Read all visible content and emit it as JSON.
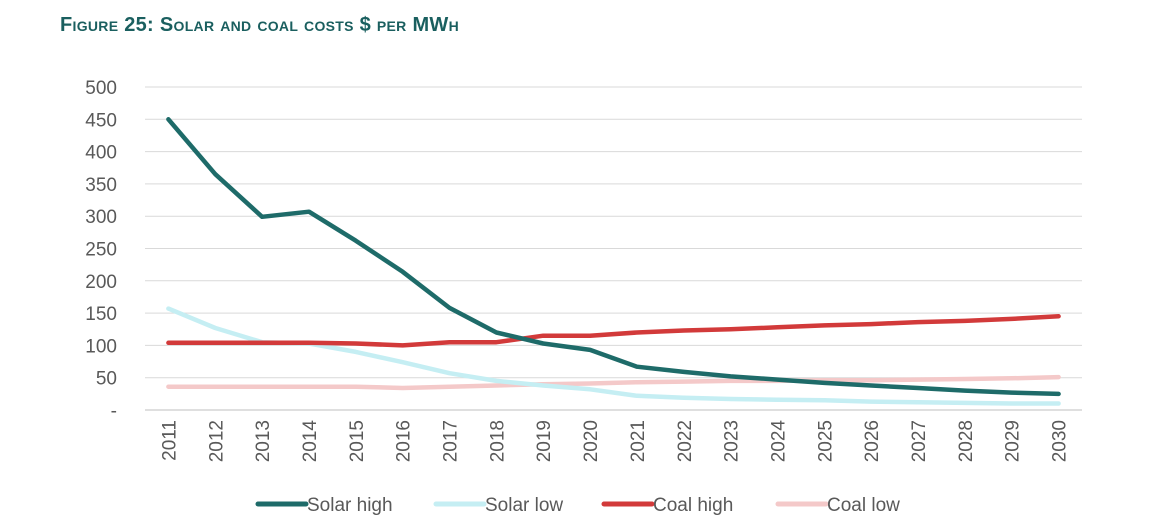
{
  "figure": {
    "title": "Figure 25: Solar and coal costs $ per MWh"
  },
  "chart_data": {
    "type": "line",
    "title": "Figure 25: Solar and coal costs $ per MWh",
    "xlabel": "",
    "ylabel": "",
    "ylim": [
      0,
      500
    ],
    "y_ticks": [
      "-",
      "50",
      "100",
      "150",
      "200",
      "250",
      "300",
      "350",
      "400",
      "450",
      "500"
    ],
    "y_tick_values": [
      0,
      50,
      100,
      150,
      200,
      250,
      300,
      350,
      400,
      450,
      500
    ],
    "grid": true,
    "legend_position": "bottom",
    "x": [
      "2011",
      "2012",
      "2013",
      "2014",
      "2015",
      "2016",
      "2017",
      "2018",
      "2019",
      "2020",
      "2021",
      "2022",
      "2023",
      "2024",
      "2025",
      "2026",
      "2027",
      "2028",
      "2029",
      "2030"
    ],
    "series": [
      {
        "name": "Solar high",
        "color": "#1e6b69",
        "values": [
          450,
          365,
          299,
          307,
          262,
          214,
          158,
          120,
          103,
          93,
          67,
          59,
          52,
          47,
          42,
          38,
          34,
          30,
          27,
          25
        ]
      },
      {
        "name": "Solar low",
        "color": "#c5eef3",
        "values": [
          157,
          127,
          105,
          103,
          90,
          74,
          57,
          45,
          38,
          32,
          22,
          19,
          17,
          16,
          15,
          13,
          12,
          11,
          10,
          10
        ]
      },
      {
        "name": "Coal high",
        "color": "#d23a3a",
        "values": [
          104,
          104,
          104,
          104,
          103,
          100,
          105,
          105,
          115,
          115,
          120,
          123,
          125,
          128,
          131,
          133,
          136,
          138,
          141,
          145
        ]
      },
      {
        "name": "Coal low",
        "color": "#f4c9c9",
        "values": [
          36,
          36,
          36,
          36,
          36,
          34,
          36,
          38,
          40,
          41,
          43,
          44,
          45,
          45,
          46,
          46,
          47,
          48,
          49,
          51
        ]
      }
    ]
  }
}
